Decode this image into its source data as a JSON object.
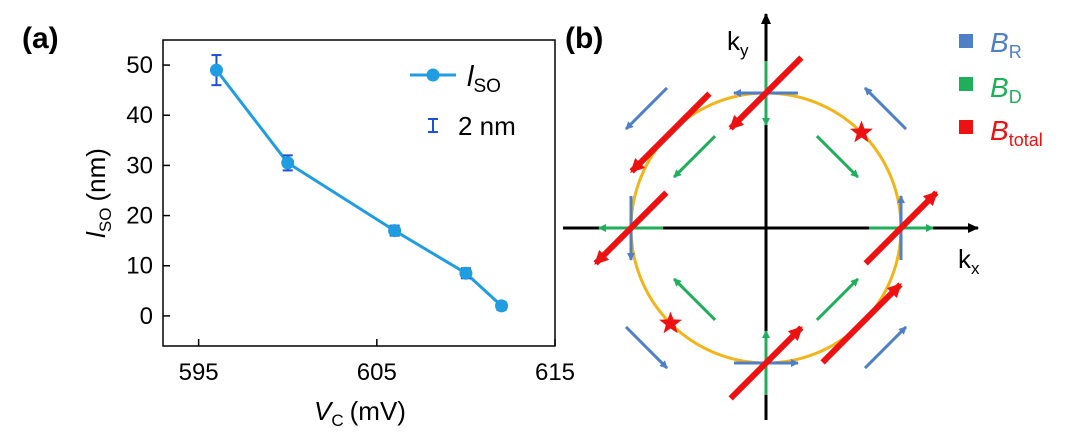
{
  "panel_a_label": "(a)",
  "panel_b_label": "(b)",
  "colors": {
    "series": "#1f9de0",
    "errorbar": "#1f4fd6",
    "rashba": "#4f7fc7",
    "dresselhaus": "#1fae5a",
    "total": "#ee1111",
    "fermi_circle": "#f2b418",
    "axis": "#000000"
  },
  "chart_data": [
    {
      "type": "line",
      "panel": "(a)",
      "x": [
        596,
        600,
        606,
        610,
        612
      ],
      "y": [
        49,
        30.5,
        17,
        8.5,
        2
      ],
      "yerr": [
        3,
        1.5,
        1,
        1,
        0.8
      ],
      "series_name": "l",
      "series_name_sub": "SO",
      "errorbar_label": "2 nm",
      "xlabel": "V",
      "xlabel_sub": "C",
      "xlabel_unit": "(mV)",
      "ylabel": "l",
      "ylabel_sub": "SO",
      "ylabel_unit": "(nm)",
      "xlim": [
        593,
        615
      ],
      "ylim": [
        -6,
        55
      ],
      "xticks": [
        595,
        605,
        615
      ],
      "yticks": [
        0,
        10,
        20,
        30,
        40,
        50
      ],
      "legend_position": "top-right"
    },
    {
      "type": "diagram",
      "panel": "(b)",
      "x_axis_label": "k",
      "x_axis_sub": "x",
      "y_axis_label": "k",
      "y_axis_sub": "y",
      "legend": [
        {
          "symbol": "B",
          "sub": "R",
          "key": "rashba"
        },
        {
          "symbol": "B",
          "sub": "D",
          "key": "dresselhaus"
        },
        {
          "symbol": "B",
          "sub": "total",
          "key": "total"
        }
      ],
      "star_angles_deg": [
        45,
        225
      ]
    }
  ]
}
